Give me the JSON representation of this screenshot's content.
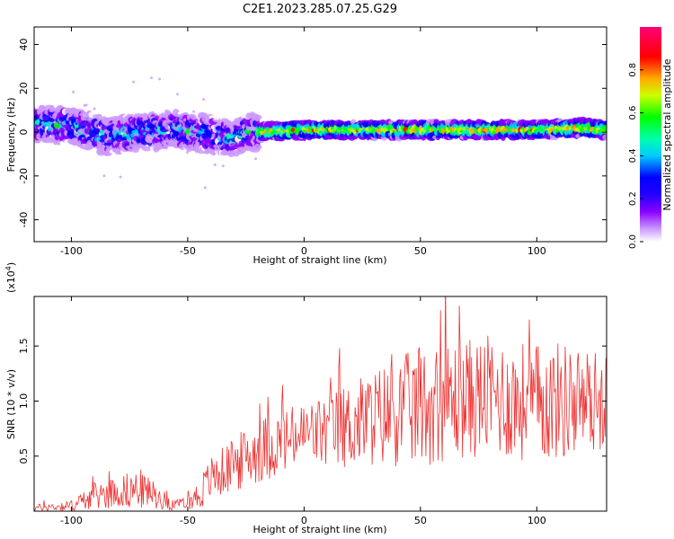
{
  "title": "C2E1.2023.285.07.25.G29",
  "chart_data": [
    {
      "type": "heatmap",
      "xlabel": "Height of straight line (km)",
      "ylabel": "Frequency (Hz)",
      "xlim": [
        -116,
        130
      ],
      "ylim": [
        -50,
        48
      ],
      "xticks": [
        -100,
        -50,
        0,
        50,
        100
      ],
      "yticks": [
        40,
        20,
        0,
        -20,
        -40
      ],
      "colorbar": {
        "label": "Normalized spectral amplitude",
        "range": [
          0,
          1
        ],
        "ticks": [
          "0.0",
          "0.2",
          "0.4",
          "0.6",
          "0.8"
        ],
        "tick_values": [
          0,
          0.2,
          0.4,
          0.6,
          0.8
        ],
        "colors": [
          "#ffffff",
          "#cc99ff",
          "#8800ff",
          "#2200ff",
          "#0000ff",
          "#00ccff",
          "#00ffaa",
          "#00ff00",
          "#ccff00",
          "#ffaa00",
          "#ff0000",
          "#ff0077"
        ]
      },
      "ridge": {
        "description_points_x": [
          -116,
          -100,
          -85,
          -70,
          -55,
          -40,
          -30,
          -25,
          -20,
          0,
          50,
          80,
          100,
          120,
          130
        ],
        "description_points_y": [
          4,
          3,
          -2,
          0,
          1,
          -1,
          -3,
          0,
          0,
          1,
          1,
          1,
          1,
          2,
          1
        ],
        "max_amplitude_start_x": -20
      }
    },
    {
      "type": "line",
      "xlabel": "Height of straight line (km)",
      "ylabel": "SNR (10 * v/v)",
      "y_multiplier_label": "(x10",
      "y_multiplier_exp": "4",
      "y_multiplier_close": ")",
      "xlim": [
        -116,
        130
      ],
      "ylim": [
        0,
        1.95
      ],
      "xticks": [
        -100,
        -50,
        0,
        50,
        100
      ],
      "yticks": [
        0.5,
        1.0,
        1.5
      ],
      "ytick_labels": [
        "0.5",
        "1.0",
        "1.5"
      ],
      "color": "#ee3333",
      "envelope": {
        "x": [
          -116,
          -100,
          -90,
          -80,
          -70,
          -60,
          -55,
          -50,
          -45,
          -40,
          -30,
          -20,
          -10,
          0,
          10,
          20,
          30,
          40,
          50,
          60,
          70,
          80,
          90,
          100,
          110,
          120,
          130
        ],
        "mean": [
          0.03,
          0.05,
          0.14,
          0.18,
          0.2,
          0.1,
          0.05,
          0.08,
          0.15,
          0.3,
          0.42,
          0.55,
          0.62,
          0.7,
          0.72,
          0.78,
          0.85,
          0.9,
          0.95,
          1.0,
          1.02,
          1.05,
          1.0,
          0.98,
          1.0,
          1.0,
          1.0
        ],
        "spread": [
          0.03,
          0.05,
          0.12,
          0.15,
          0.18,
          0.08,
          0.05,
          0.06,
          0.15,
          0.2,
          0.25,
          0.3,
          0.3,
          0.3,
          0.35,
          0.4,
          0.45,
          0.5,
          0.55,
          0.55,
          0.55,
          0.55,
          0.55,
          0.55,
          0.55,
          0.5,
          0.45
        ]
      }
    }
  ]
}
